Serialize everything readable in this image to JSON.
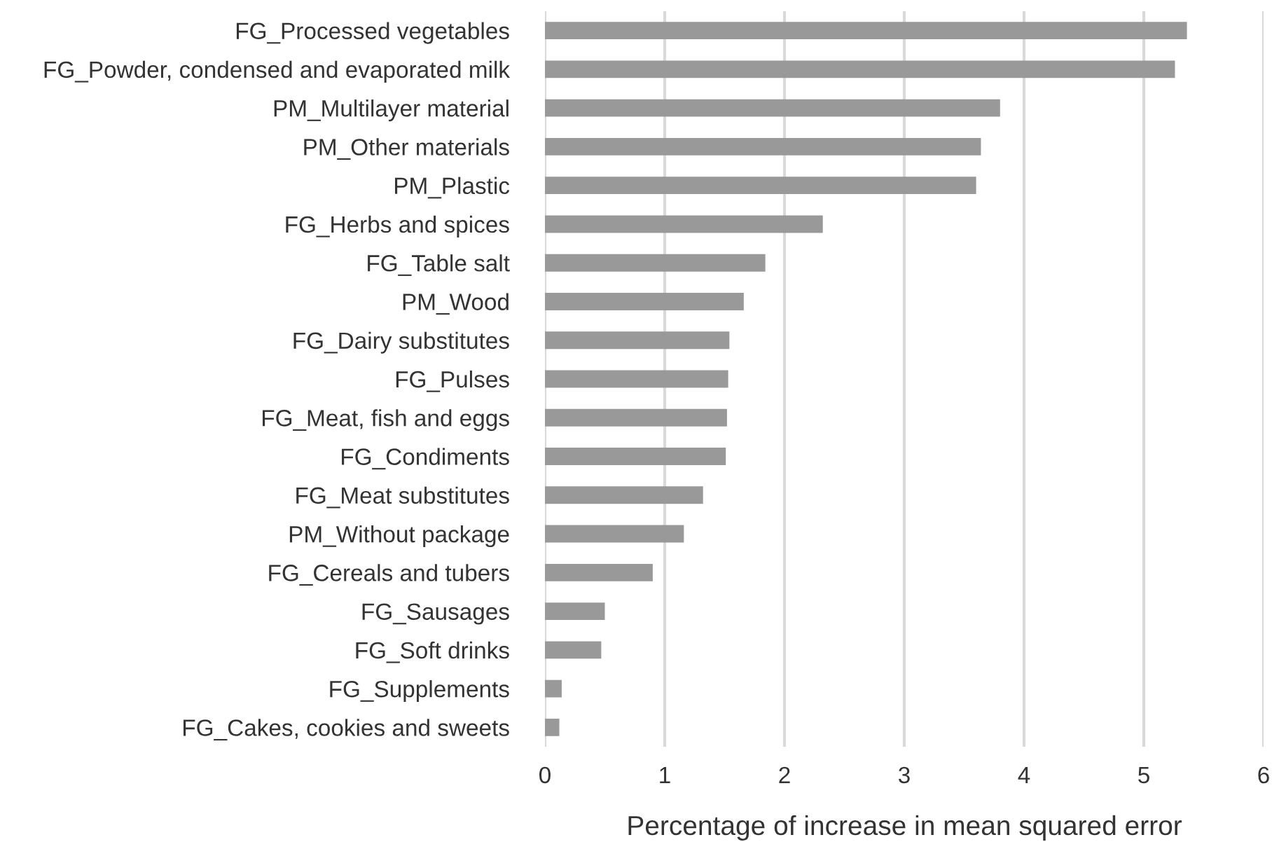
{
  "chart_data": {
    "type": "bar",
    "orientation": "horizontal",
    "xlabel": "Percentage of increase in mean squared error",
    "categories": [
      "FG_Processed vegetables",
      "FG_Powder, condensed and evaporated milk",
      "PM_Multilayer material",
      "PM_Other materials",
      "PM_Plastic",
      "FG_Herbs and spices",
      "FG_Table salt",
      "PM_Wood",
      "FG_Dairy substitutes",
      "FG_Pulses",
      "FG_Meat, fish and eggs",
      "FG_Condiments",
      "FG_Meat substitutes",
      "PM_Without package",
      "FG_Cereals and tubers",
      "FG_Sausages",
      "FG_Soft drinks",
      "FG_Supplements",
      "FG_Cakes, cookies and sweets"
    ],
    "values": [
      5.36,
      5.26,
      3.8,
      3.64,
      3.6,
      2.32,
      1.84,
      1.66,
      1.54,
      1.53,
      1.52,
      1.51,
      1.32,
      1.16,
      0.9,
      0.5,
      0.47,
      0.14,
      0.12
    ],
    "color": "#999999",
    "xlim": [
      0,
      6
    ],
    "xticks": [
      0,
      1,
      2,
      3,
      4,
      5,
      6
    ],
    "grid": "x"
  }
}
